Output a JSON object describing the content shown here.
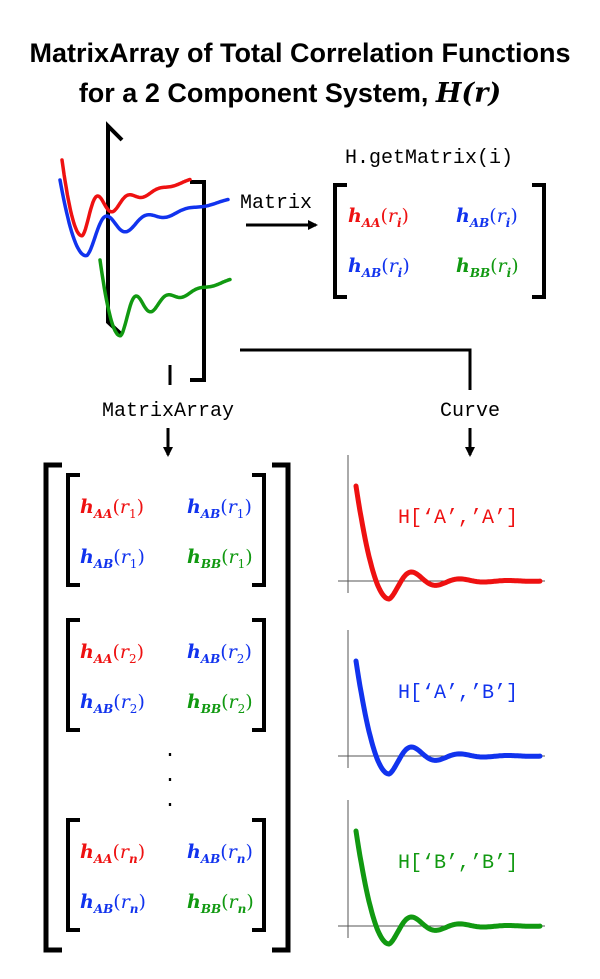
{
  "title": {
    "line1": "MatrixArray of Total Correlation Functions",
    "line2_prefix": "for  a 2 Component System, ",
    "line2_var": "H(r)"
  },
  "labels": {
    "get_matrix": "H.getMatrix(i)",
    "matrix": "Matrix",
    "matrix_array": "MatrixArray",
    "curve": "Curve",
    "dots": "·"
  },
  "colors": {
    "AA": "#ee1111",
    "AB": "#1133ee",
    "BB": "#119911"
  },
  "functions": {
    "h": "h",
    "AA": "AA",
    "AB": "AB",
    "BB": "BB",
    "r": "r"
  },
  "matrix_index": "i",
  "array_indices": [
    "1",
    "2",
    "n"
  ],
  "curves": [
    {
      "label": "H[‘A’,’A’]",
      "pair": "AA"
    },
    {
      "label": "H[‘A’,’B’]",
      "pair": "AB"
    },
    {
      "label": "H[‘B’,’B’]",
      "pair": "BB"
    }
  ]
}
